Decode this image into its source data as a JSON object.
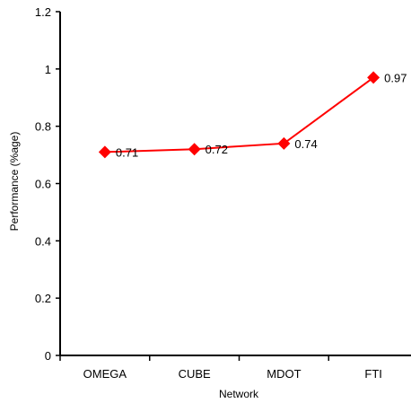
{
  "chart_data": {
    "type": "line",
    "title": "",
    "xlabel": "Network",
    "ylabel": "Performance (%age)",
    "categories": [
      "OMEGA",
      "CUBE",
      "MDOT",
      "FTI"
    ],
    "series": [
      {
        "values": [
          0.71,
          0.72,
          0.74,
          0.97
        ],
        "labels": [
          "0.71",
          "0.72",
          "0.74",
          "0.97"
        ],
        "color": "#ff0000",
        "marker": "diamond"
      }
    ],
    "ylim": [
      0,
      1.2
    ],
    "yticks": [
      0,
      0.2,
      0.4,
      0.6,
      0.8,
      1,
      1.2
    ],
    "ytick_labels": [
      "0",
      "0.2",
      "0.4",
      "0.6",
      "0.8",
      "1",
      "1.2"
    ],
    "grid": false,
    "legend": "none"
  }
}
